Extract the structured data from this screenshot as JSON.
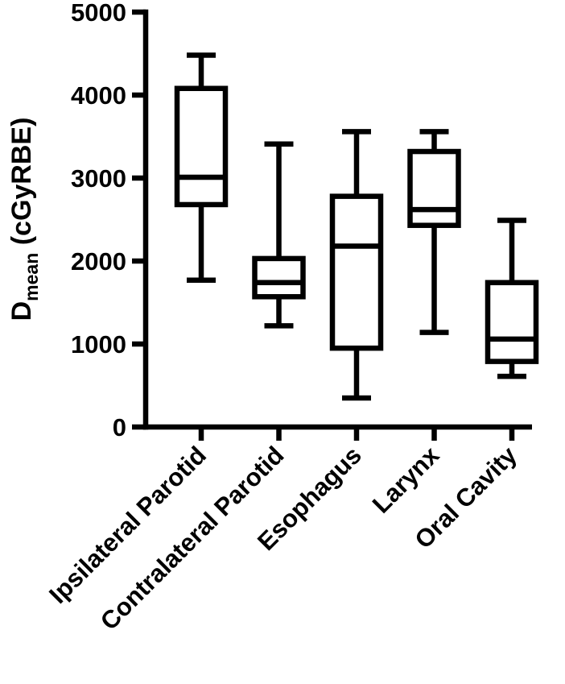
{
  "chart_data": {
    "type": "box",
    "title": "",
    "xlabel": "",
    "ylabel": {
      "main": "D",
      "subscript": "mean",
      "suffix": " (cGyRBE)"
    },
    "ylim": [
      0,
      5000
    ],
    "yticks": [
      0,
      1000,
      2000,
      3000,
      4000,
      5000
    ],
    "ytick_labels": [
      "0",
      "1000",
      "2000",
      "3000",
      "4000",
      "5000"
    ],
    "categories": [
      "Ipsilateral Parotid",
      "Contralateral Parotid",
      "Esophagus",
      "Larynx",
      "Oral Cavity"
    ],
    "boxes": [
      {
        "name": "Ipsilateral Parotid",
        "min": 1770,
        "q1": 2680,
        "median": 3010,
        "q3": 4080,
        "max": 4480
      },
      {
        "name": "Contralateral Parotid",
        "min": 1220,
        "q1": 1570,
        "median": 1740,
        "q3": 2030,
        "max": 3410
      },
      {
        "name": "Esophagus",
        "min": 350,
        "q1": 950,
        "median": 2180,
        "q3": 2780,
        "max": 3560
      },
      {
        "name": "Larynx",
        "min": 1140,
        "q1": 2430,
        "median": 2620,
        "q3": 3320,
        "max": 3560
      },
      {
        "name": "Oral Cavity",
        "min": 610,
        "q1": 790,
        "median": 1060,
        "q3": 1740,
        "max": 2490
      }
    ],
    "color": "#000000"
  }
}
